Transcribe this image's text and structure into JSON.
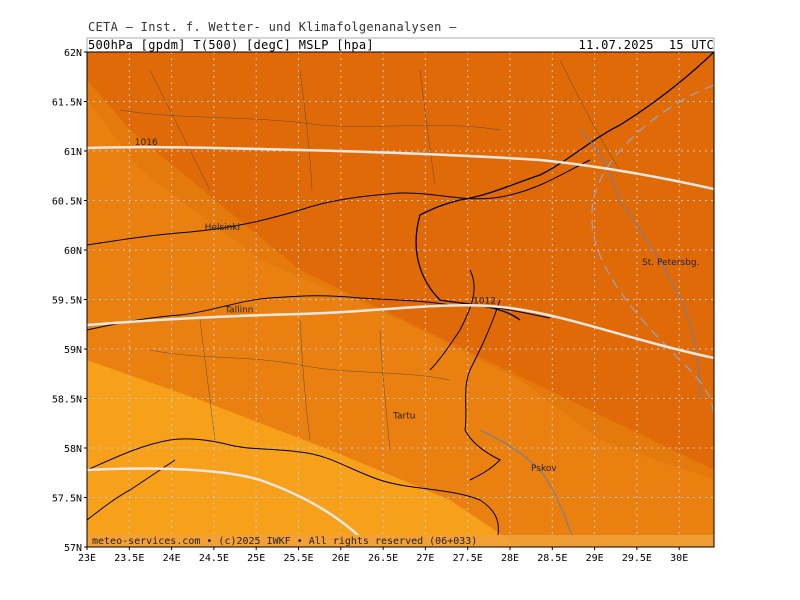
{
  "header": {
    "title": "CETA — Inst. f. Wetter- und Klimafolgenanalysen —",
    "params": "500hPa [gpdm] T(500) [degC] MSLP [hpa]",
    "valid_time": "11.07.2025  15 UTC"
  },
  "credit": "meteo-services.com • (c)2025 IWKF • All rights reserved (06+033)",
  "axes": {
    "lon_labels": [
      "23E",
      "23.5E",
      "24E",
      "24.5E",
      "25E",
      "25.5E",
      "26E",
      "26.5E",
      "27E",
      "27.5E",
      "28E",
      "28.5E",
      "29E",
      "29.5E",
      "30E"
    ],
    "lat_labels": [
      "62N",
      "61.5N",
      "61N",
      "60.5N",
      "60N",
      "59.5N",
      "59N",
      "58.5N",
      "58N",
      "57.5N",
      "57N"
    ],
    "lon_values": [
      23,
      23.5,
      24,
      24.5,
      25,
      25.5,
      26,
      26.5,
      27,
      27.5,
      28,
      28.5,
      29,
      29.5,
      30
    ],
    "lat_values": [
      62,
      61.5,
      61,
      60.5,
      60,
      59.5,
      59,
      58.5,
      58,
      57.5,
      57
    ],
    "lon_range": [
      23,
      30.4
    ],
    "lat_range": [
      57,
      62
    ]
  },
  "isobar_labels": [
    {
      "text": "1016",
      "lon": 23.7,
      "lat": 61.05
    },
    {
      "text": "1012",
      "lon": 27.7,
      "lat": 59.45
    }
  ],
  "places": [
    {
      "name": "Helsinki",
      "lon": 24.6,
      "lat": 60.2
    },
    {
      "name": "Tallinn",
      "lon": 24.8,
      "lat": 59.37
    },
    {
      "name": "St. Petersbg.",
      "lon": 29.9,
      "lat": 59.85
    },
    {
      "name": "Tartu",
      "lon": 26.75,
      "lat": 58.3
    },
    {
      "name": "Pskov",
      "lon": 28.4,
      "lat": 57.77
    }
  ],
  "colors": {
    "temp_band_warmest": "#f7a01a",
    "temp_band_warm": "#ef8a10",
    "temp_band_mid": "#e57a0c",
    "temp_band_cool": "#e06a08",
    "isobar": "#f0e8e0",
    "grid": "#c8c8c8",
    "coastline": "#000000",
    "river": "#6f7fa0"
  }
}
